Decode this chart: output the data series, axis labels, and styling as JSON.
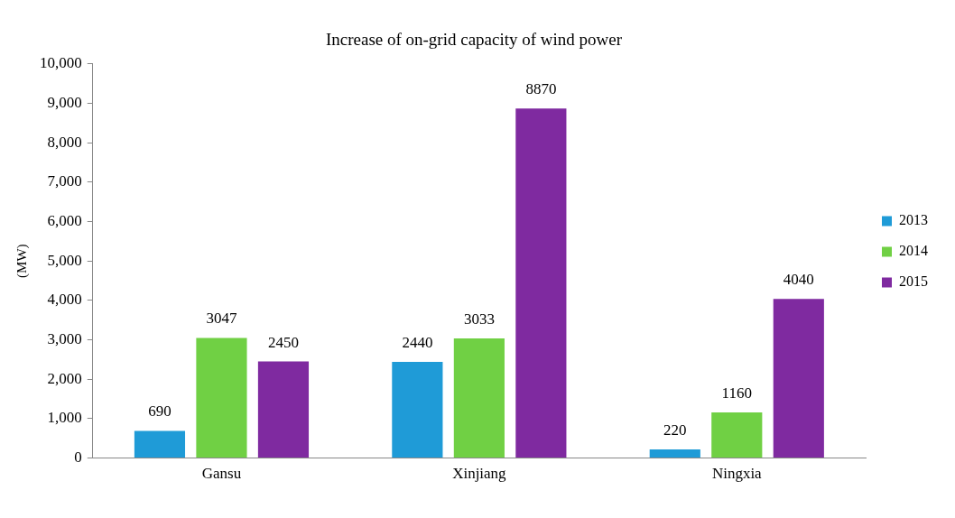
{
  "chart_data": {
    "type": "bar",
    "title": "Increase of on-grid capacity of wind power",
    "ylabel": "(MW)",
    "categories": [
      "Gansu",
      "Xinjiang",
      "Ningxia"
    ],
    "series": [
      {
        "name": "2013",
        "color": "#1f9bd7",
        "values": [
          690,
          2440,
          220
        ]
      },
      {
        "name": "2014",
        "color": "#70d044",
        "values": [
          3047,
          3033,
          1160
        ]
      },
      {
        "name": "2015",
        "color": "#7f2aa0",
        "values": [
          2450,
          8870,
          4040
        ]
      }
    ],
    "ylim": [
      0,
      10000
    ],
    "yticks": [
      0,
      {
        "value": 1000,
        "label": "1,000"
      },
      {
        "value": 2000,
        "label": "2,000"
      },
      {
        "value": 3000,
        "label": "3,000"
      },
      {
        "value": 4000,
        "label": "4,000"
      },
      {
        "value": 5000,
        "label": "5,000"
      },
      {
        "value": 6000,
        "label": "6,000"
      },
      {
        "value": 7000,
        "label": "7,000"
      },
      {
        "value": 8000,
        "label": "8,000"
      },
      {
        "value": 9000,
        "label": "9,000"
      },
      {
        "value": 10000,
        "label": "10,000"
      }
    ],
    "grid": false,
    "legend": "right",
    "data_labels": true
  }
}
